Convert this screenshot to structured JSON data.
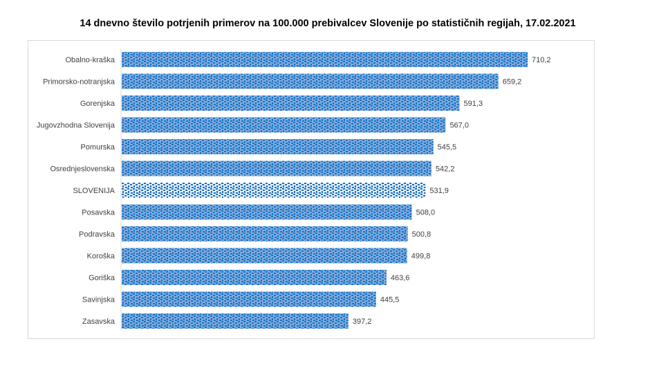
{
  "chart_data": {
    "type": "bar",
    "orientation": "horizontal",
    "title": "14 dnevno število potrjenih primerov na 100.000  prebivalcev Slovenije po statističnih regijah, 17.02.2021",
    "categories": [
      "Obalno-kraška",
      "Primorsko-notranjska",
      "Gorenjska",
      "Jugovzhodna Slovenija",
      "Pomurska",
      "Osrednjeslovenska",
      "SLOVENIJA",
      "Posavska",
      "Podravska",
      "Koroška",
      "Goriška",
      "Savinjska",
      "Zasavska"
    ],
    "values": [
      710.2,
      659.2,
      591.3,
      567.0,
      545.5,
      542.2,
      531.9,
      508.0,
      500.8,
      499.8,
      463.6,
      445.5,
      397.2
    ],
    "value_labels": [
      "710,2",
      "659,2",
      "591,3",
      "567,0",
      "545,5",
      "542,2",
      "531,9",
      "508,0",
      "500,8",
      "499,8",
      "463,6",
      "445,5",
      "397,2"
    ],
    "highlight": "SLOVENIJA",
    "xlim": [
      0,
      710.2
    ],
    "grid": false,
    "legend": "none",
    "colors": {
      "bar_bg": "#86aadb",
      "bar_dots": "#0f75c6",
      "highlight_bg": "#e3eef9",
      "highlight_dots": "#1a6fb8"
    }
  }
}
